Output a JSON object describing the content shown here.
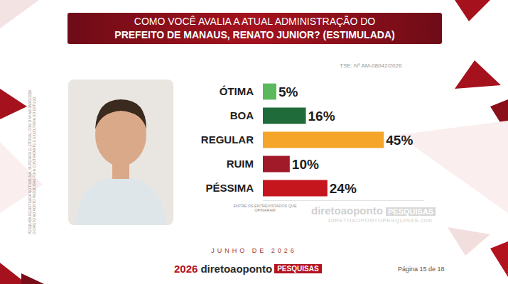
{
  "chart_data": {
    "type": "bar",
    "orientation": "horizontal",
    "title": "COMO VOCÊ AVALIA A ATUAL ADMINISTRAÇÃO DO",
    "subtitle": "PREFEITO DE MANAUS, RENATO JUNIOR? (ESTIMULADA)",
    "categories": [
      "ÓTIMA",
      "BOA",
      "REGULAR",
      "RUIM",
      "PÉSSIMA"
    ],
    "values": [
      5,
      16,
      45,
      10,
      24
    ],
    "value_labels": [
      "5%",
      "16%",
      "45%",
      "10%",
      "24%"
    ],
    "colors": [
      "#5cb85c",
      "#1f6b3a",
      "#f5a52a",
      "#a11a2a",
      "#c4161c"
    ],
    "xlim": [
      0,
      60
    ],
    "data_labels": true,
    "tick_labels": "y",
    "grid": false,
    "annotations": {
      "registration": "TSE: Nº AM-08042/2026",
      "note": "ENTRE OS ENTREVISTADOS QUE OPINARAM",
      "watermark": "diretoaoponto",
      "watermark_tag": "PESQUISAS",
      "watermark_url": "DIRETOAOPONTOPESQUISAS.com",
      "date": "JUNHO DE 2026",
      "brand_year": "2026",
      "brand": "diretoaoponto",
      "brand_tag": "PESQUISAS",
      "page": "Página 15 de 18",
      "side_note_1": "PESQUISA REGISTRADA NO TRIBUNAL SUPERIOR ELEITORAL COM O Nº AM-08042/2026",
      "side_note_2": "O DIRETO AO PONTO PESQUISAS FOI A CONTRATANTE E EXECUTORA DO ESTUDO."
    }
  }
}
